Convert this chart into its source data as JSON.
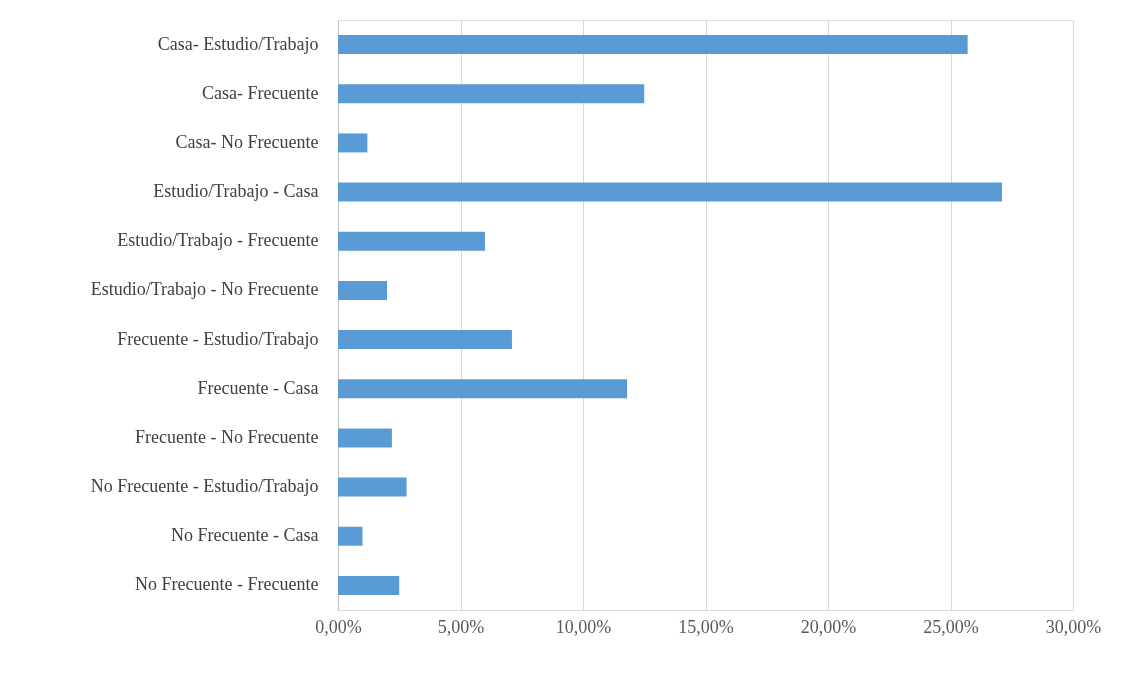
{
  "chart_data": {
    "type": "bar",
    "orientation": "horizontal",
    "categories": [
      "Casa- Estudio/Trabajo",
      "Casa- Frecuente",
      "Casa- No Frecuente",
      "Estudio/Trabajo - Casa",
      "Estudio/Trabajo - Frecuente",
      "Estudio/Trabajo - No Frecuente",
      "Frecuente - Estudio/Trabajo",
      "Frecuente - Casa",
      "Frecuente - No Frecuente",
      "No Frecuente - Estudio/Trabajo",
      "No Frecuente - Casa",
      "No Frecuente - Frecuente"
    ],
    "values": [
      25.7,
      12.5,
      1.2,
      27.1,
      6.0,
      2.0,
      7.1,
      11.8,
      2.2,
      2.8,
      1.0,
      2.5
    ],
    "color": "#5b9bd5",
    "xlim": [
      0,
      30
    ],
    "xticks": [
      {
        "value": 0,
        "label": "0,00%"
      },
      {
        "value": 5,
        "label": "5,00%"
      },
      {
        "value": 10,
        "label": "10,00%"
      },
      {
        "value": 15,
        "label": "15,00%"
      },
      {
        "value": 20,
        "label": "20,00%"
      },
      {
        "value": 25,
        "label": "25,00%"
      },
      {
        "value": 30,
        "label": "30,00%"
      }
    ],
    "grid": "x"
  }
}
